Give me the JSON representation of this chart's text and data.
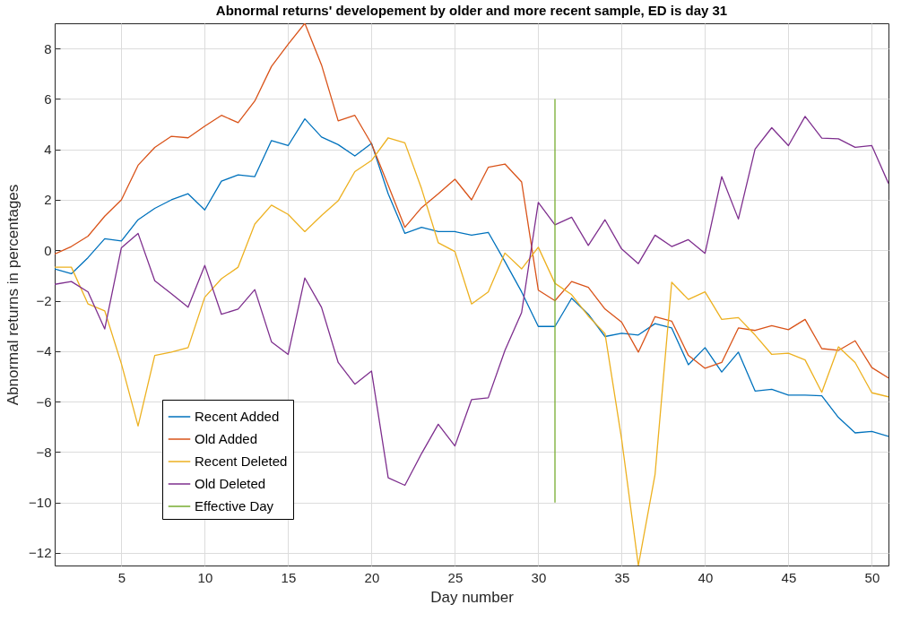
{
  "chart_data": {
    "type": "line",
    "title": "Abnormal returns' developement by older and more recent sample, ED is day 31",
    "xlabel": "Day number",
    "ylabel": "Abnormal returns in percentages",
    "x": [
      1,
      2,
      3,
      4,
      5,
      6,
      7,
      8,
      9,
      10,
      11,
      12,
      13,
      14,
      15,
      16,
      17,
      18,
      19,
      20,
      21,
      22,
      23,
      24,
      25,
      26,
      27,
      28,
      29,
      30,
      31,
      32,
      33,
      34,
      35,
      36,
      37,
      38,
      39,
      40,
      41,
      42,
      43,
      44,
      45,
      46,
      47,
      48,
      49,
      50,
      51
    ],
    "series": [
      {
        "name": "Recent Added",
        "color": "#0072bd",
        "values": [
          -0.74,
          -0.93,
          -0.29,
          0.46,
          0.37,
          1.21,
          1.66,
          2.0,
          2.24,
          1.6,
          2.74,
          2.99,
          2.92,
          4.35,
          4.15,
          5.21,
          4.49,
          4.19,
          3.74,
          4.24,
          2.24,
          0.67,
          0.91,
          0.74,
          0.74,
          0.6,
          0.71,
          -0.45,
          -1.65,
          -3.02,
          -3.02,
          -1.9,
          -2.54,
          -3.42,
          -3.29,
          -3.36,
          -2.91,
          -3.08,
          -4.54,
          -3.86,
          -4.83,
          -4.04,
          -5.58,
          -5.51,
          -5.74,
          -5.74,
          -5.77,
          -6.63,
          -7.24,
          -7.18,
          -7.38
        ]
      },
      {
        "name": "Old Added",
        "color": "#d95319",
        "values": [
          -0.15,
          0.15,
          0.56,
          1.35,
          2.0,
          3.37,
          4.08,
          4.52,
          4.46,
          4.92,
          5.35,
          5.06,
          5.92,
          7.29,
          8.17,
          9.0,
          7.35,
          5.13,
          5.35,
          4.22,
          2.58,
          0.91,
          1.69,
          2.24,
          2.82,
          2.0,
          3.29,
          3.42,
          2.71,
          -1.58,
          -2.0,
          -1.24,
          -1.47,
          -2.33,
          -2.85,
          -4.04,
          -2.63,
          -2.81,
          -4.17,
          -4.68,
          -4.45,
          -3.08,
          -3.18,
          -2.99,
          -3.15,
          -2.74,
          -3.9,
          -3.97,
          -3.59,
          -4.65,
          -5.06
        ]
      },
      {
        "name": "Recent Deleted",
        "color": "#edb120",
        "values": [
          -0.67,
          -0.67,
          -2.13,
          -2.4,
          -4.5,
          -6.97,
          -4.17,
          -4.04,
          -3.86,
          -1.86,
          -1.13,
          -0.67,
          1.04,
          1.79,
          1.42,
          0.74,
          1.38,
          1.96,
          3.12,
          3.56,
          4.46,
          4.26,
          2.44,
          0.3,
          -0.05,
          -2.13,
          -1.65,
          -0.11,
          -0.74,
          0.12,
          -1.31,
          -1.76,
          -2.61,
          -3.3,
          -7.5,
          -12.5,
          -8.9,
          -1.27,
          -1.95,
          -1.65,
          -2.74,
          -2.67,
          -3.36,
          -4.13,
          -4.08,
          -4.35,
          -5.63,
          -3.83,
          -4.45,
          -5.65,
          -5.81
        ]
      },
      {
        "name": "Old Deleted",
        "color": "#7e2f8e",
        "values": [
          -1.35,
          -1.24,
          -1.65,
          -3.12,
          0.1,
          0.67,
          -1.21,
          -1.72,
          -2.26,
          -0.6,
          -2.54,
          -2.33,
          -1.56,
          -3.63,
          -4.13,
          -1.1,
          -2.26,
          -4.45,
          -5.31,
          -4.79,
          -9.02,
          -9.32,
          -8.06,
          -6.9,
          -7.76,
          -5.92,
          -5.85,
          -3.97,
          -2.47,
          1.9,
          1.01,
          1.31,
          0.19,
          1.21,
          0.05,
          -0.53,
          0.6,
          0.15,
          0.42,
          -0.12,
          2.92,
          1.24,
          4.01,
          4.86,
          4.15,
          5.31,
          4.45,
          4.42,
          4.08,
          4.15,
          2.65
        ]
      },
      {
        "name": "Effective Day",
        "color": "#77ac30",
        "x": [
          31,
          31
        ],
        "values": [
          6,
          -10
        ]
      }
    ],
    "xlim": [
      1,
      51
    ],
    "xticks": [
      5,
      10,
      15,
      20,
      25,
      30,
      35,
      40,
      45,
      50
    ],
    "ylim": [
      -12.5,
      9
    ],
    "yticks": [
      -12,
      -10,
      -8,
      -6,
      -4,
      -2,
      0,
      2,
      4,
      6,
      8
    ],
    "grid": true,
    "legend": "bottom left"
  }
}
